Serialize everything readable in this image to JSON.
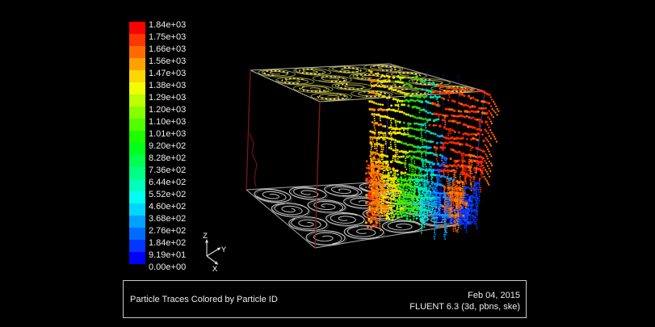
{
  "caption": {
    "title": "Particle Traces Colored by Particle ID",
    "date": "Feb 04, 2015",
    "software": "FLUENT 6.3 (3d, pbns, ske)"
  },
  "axes": {
    "z": "Z",
    "y": "Y",
    "x": "X"
  },
  "chart_data": {
    "type": "scatter",
    "title": "Particle Traces Colored by Particle ID",
    "colorbar": {
      "quantity": "Particle ID",
      "bands": 20,
      "range": [
        0,
        1840
      ],
      "tick_labels": [
        "1.84e+03",
        "1.75e+03",
        "1.66e+03",
        "1.56e+03",
        "1.47e+03",
        "1.38e+03",
        "1.29e+03",
        "1.20e+03",
        "1.10e+03",
        "1.01e+03",
        "9.20e+02",
        "8.28e+02",
        "7.36e+02",
        "6.44e+02",
        "5.52e+02",
        "4.60e+02",
        "3.68e+02",
        "2.76e+02",
        "1.84e+02",
        "9.19e+01",
        "0.00e+00"
      ],
      "tick_values": [
        1840,
        1750,
        1660,
        1560,
        1470,
        1380,
        1290,
        1200,
        1100,
        1010,
        920,
        828,
        736,
        644,
        552,
        460,
        368,
        276,
        184,
        91.9,
        0
      ],
      "colors_top_to_bottom": [
        "#ff0000",
        "#ff3600",
        "#ff6b00",
        "#ffa100",
        "#ffd700",
        "#f2ff00",
        "#bcff00",
        "#86ff00",
        "#51ff00",
        "#1bff00",
        "#00ff1b",
        "#00ff51",
        "#00ff86",
        "#00ffbc",
        "#00fff2",
        "#00d7ff",
        "#00a1ff",
        "#006bff",
        "#0036ff",
        "#0000ff"
      ]
    },
    "axis_triad": [
      "Z",
      "Y",
      "X"
    ],
    "annotations": [
      "Feb 04, 2015",
      "FLUENT 6.3 (3d, pbns, ske)"
    ],
    "description": "3D wireframe box domain containing a 4x4 tube bundle (swirl spiral cross-sections drawn on the top and bottom faces) with a curtain of dotted particle traces colored by particle ID from blue (0.00e+00) at the bottom right to red (1.84e+03) at the top."
  },
  "colors": {
    "background": "#000000",
    "wireframe": "#b9b9b9",
    "left_edges": "#7d1616",
    "right_edge": "#26268f",
    "top_spirals": "#8f8f3e",
    "top_spiral_highlight": "#ffe84d",
    "bottom_spirals": "#d4d4d4"
  }
}
